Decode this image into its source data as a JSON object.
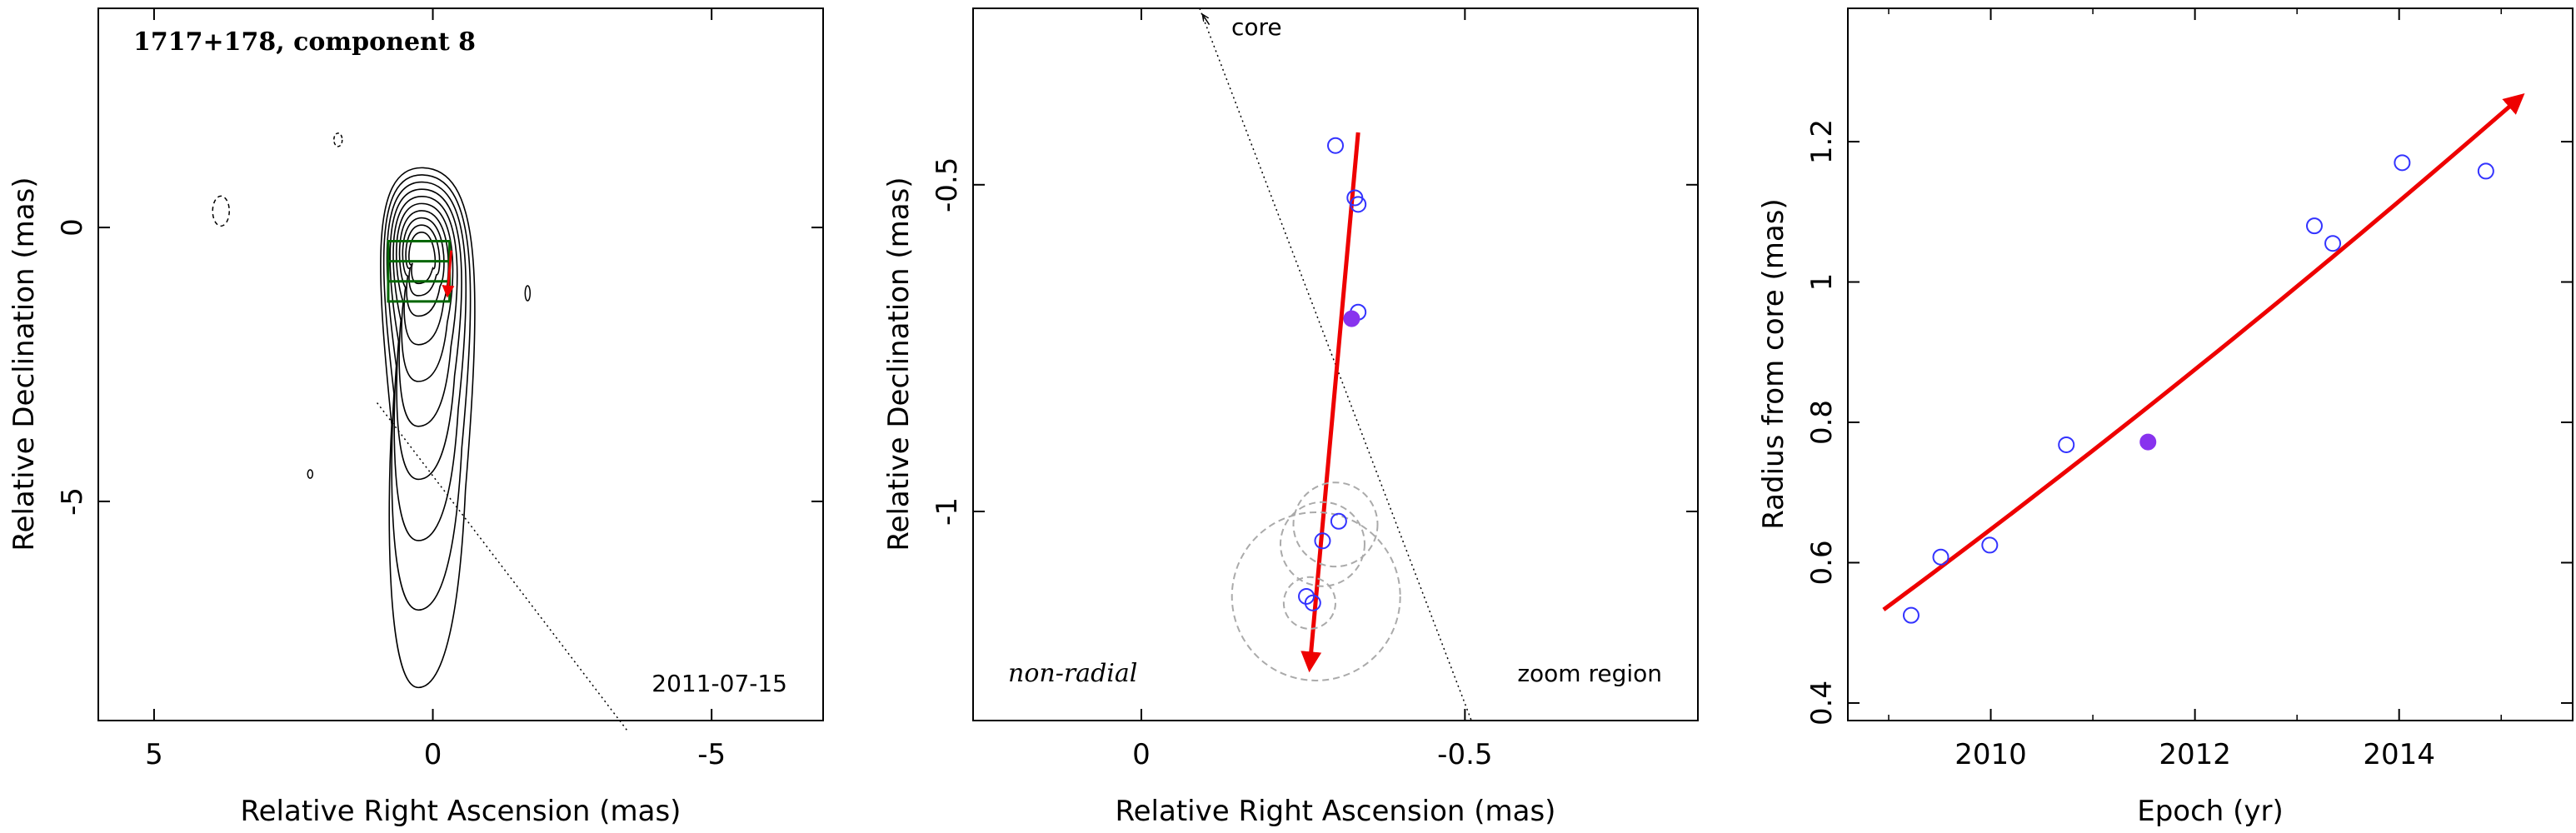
{
  "chart_data": [
    {
      "type": "contour",
      "title": "1717+178, component 8",
      "xlabel": "Relative Right Ascension (mas)",
      "ylabel": "Relative Declination (mas)",
      "xlim": [
        6,
        -7
      ],
      "ylim": [
        -9,
        4
      ],
      "xticks": [
        5,
        0,
        -5
      ],
      "yticks": [
        0,
        -5
      ],
      "date_label": "2011-07-15",
      "contours": {
        "center": [
          0.2,
          -0.4
        ],
        "levels": 10
      },
      "zoom_box": {
        "x": [
          0.8,
          -0.3
        ],
        "y": [
          -1.35,
          -0.25
        ]
      },
      "core_direction_line": {
        "from": [
          1.0,
          -3.2
        ],
        "to": [
          -3.5,
          -9.2
        ]
      }
    },
    {
      "type": "scatter",
      "xlabel": "Relative Right Ascension (mas)",
      "ylabel": "Relative Declination (mas)",
      "xlim": [
        0.26,
        -0.86
      ],
      "ylim": [
        -1.32,
        -0.23
      ],
      "xticks": [
        0,
        -0.5
      ],
      "yticks": [
        -0.5,
        -1
      ],
      "labels": {
        "core": "core",
        "motion": "non-radial",
        "region": "zoom region"
      },
      "points": [
        {
          "x": -0.3,
          "y": -0.44,
          "filled": false
        },
        {
          "x": -0.33,
          "y": -0.52,
          "filled": false
        },
        {
          "x": -0.335,
          "y": -0.53,
          "filled": false
        },
        {
          "x": -0.335,
          "y": -0.695,
          "filled": false
        },
        {
          "x": -0.325,
          "y": -0.705,
          "filled": true
        },
        {
          "x": -0.305,
          "y": -1.015,
          "filled": false
        },
        {
          "x": -0.28,
          "y": -1.045,
          "filled": false
        },
        {
          "x": -0.255,
          "y": -1.13,
          "filled": false
        },
        {
          "x": -0.265,
          "y": -1.14,
          "filled": false
        }
      ],
      "error_circles": [
        {
          "x": -0.3,
          "y": -1.02,
          "r": 0.065
        },
        {
          "x": -0.28,
          "y": -1.05,
          "r": 0.065
        },
        {
          "x": -0.26,
          "y": -1.14,
          "r": 0.04
        },
        {
          "x": -0.27,
          "y": -1.13,
          "r": 0.13
        }
      ],
      "vector": {
        "from": [
          -0.335,
          -0.42
        ],
        "to": [
          -0.26,
          -1.24
        ]
      },
      "core_line": {
        "from": [
          -0.09,
          -0.23
        ],
        "to": [
          -0.51,
          -1.32
        ]
      }
    },
    {
      "type": "scatter",
      "xlabel": "Epoch (yr)",
      "ylabel": "Radius from core (mas)",
      "xlim": [
        2008.6,
        2015.7
      ],
      "ylim": [
        0.375,
        1.39
      ],
      "xticks": [
        2010,
        2012,
        2014
      ],
      "yticks": [
        0.4,
        0.6,
        0.8,
        1,
        1.2
      ],
      "yticklabels": [
        "0.4",
        "0.6",
        "0.8",
        "1",
        "1.2"
      ],
      "points": [
        {
          "x": 2009.22,
          "y": 0.525,
          "filled": false
        },
        {
          "x": 2009.51,
          "y": 0.608,
          "filled": false
        },
        {
          "x": 2009.99,
          "y": 0.625,
          "filled": false
        },
        {
          "x": 2010.74,
          "y": 0.768,
          "filled": false
        },
        {
          "x": 2011.54,
          "y": 0.772,
          "filled": true
        },
        {
          "x": 2013.17,
          "y": 1.08,
          "filled": false
        },
        {
          "x": 2013.35,
          "y": 1.055,
          "filled": false
        },
        {
          "x": 2014.03,
          "y": 1.17,
          "filled": false
        },
        {
          "x": 2014.85,
          "y": 1.158,
          "filled": false
        }
      ],
      "fit": {
        "x": [
          2008.95,
          2015.2
        ],
        "y0": 0.533,
        "y1": 1.265,
        "curvature": 0.06
      }
    }
  ],
  "colors": {
    "axes": "#000000",
    "contour": "#000000",
    "point": "#3333ff",
    "point_filled": "#8833ee",
    "fit": "#ee0000",
    "zoom_box": "#006600",
    "error_circle": "#aaaaaa"
  }
}
